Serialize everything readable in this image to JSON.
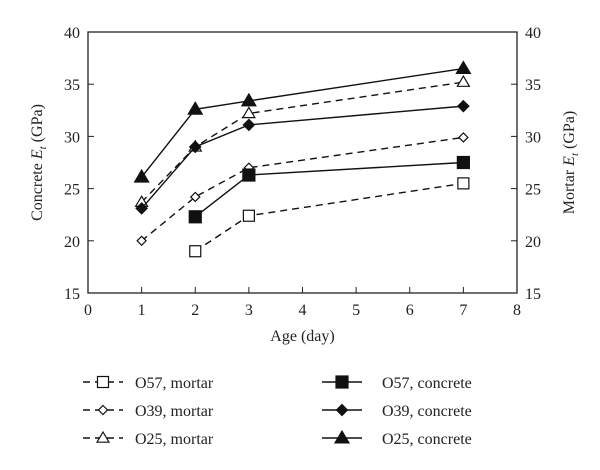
{
  "chart_data": {
    "type": "line",
    "title": "",
    "xlabel": "Age (day)",
    "ylabel_left": "Concrete E_t (GPa)",
    "ylabel_right": "Mortar E_t (GPa)",
    "ylabel_left_parts": {
      "pre": "Concrete ",
      "sym": "E",
      "sub": "t",
      "post": " (GPa)"
    },
    "ylabel_right_parts": {
      "pre": "Mortar ",
      "sym": "E",
      "sub": "t",
      "post": " (GPa)"
    },
    "xlim": [
      0,
      8
    ],
    "ylim": [
      15,
      40
    ],
    "xticks": [
      0,
      1,
      2,
      3,
      4,
      5,
      6,
      7,
      8
    ],
    "yticks": [
      15,
      20,
      25,
      30,
      35,
      40
    ],
    "grid": false,
    "legend_placement": "bottom",
    "series": [
      {
        "name": "O57, mortar",
        "marker": "square-open",
        "dashed": true,
        "x": [
          2,
          3,
          7
        ],
        "y": [
          19.0,
          22.4,
          25.5
        ]
      },
      {
        "name": "O39, mortar",
        "marker": "diamond-open",
        "dashed": true,
        "x": [
          1,
          2,
          3,
          7
        ],
        "y": [
          20.0,
          24.2,
          27.0,
          29.9
        ]
      },
      {
        "name": "O25, mortar",
        "marker": "triangle-open",
        "dashed": true,
        "x": [
          1,
          2,
          3,
          7
        ],
        "y": [
          23.7,
          29.0,
          32.2,
          35.2
        ]
      },
      {
        "name": "O57, concrete",
        "marker": "square-filled",
        "dashed": false,
        "x": [
          2,
          3,
          7
        ],
        "y": [
          22.3,
          26.3,
          27.5
        ]
      },
      {
        "name": "O39, concrete",
        "marker": "diamond-filled",
        "dashed": false,
        "x": [
          1,
          2,
          3,
          7
        ],
        "y": [
          23.1,
          29.0,
          31.1,
          32.9
        ]
      },
      {
        "name": "O25, concrete",
        "marker": "triangle-filled",
        "dashed": false,
        "x": [
          1,
          2,
          3,
          7
        ],
        "y": [
          26.1,
          32.6,
          33.4,
          36.5
        ]
      }
    ]
  }
}
